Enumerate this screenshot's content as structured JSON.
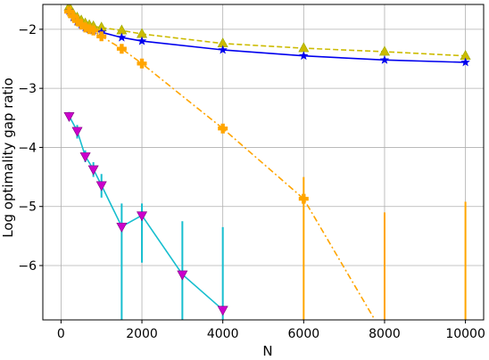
{
  "chart_data": {
    "type": "line",
    "title": "",
    "xlabel": "N",
    "ylabel": "Log optimality gap ratio",
    "xlim": [
      -450,
      10450
    ],
    "ylim": [
      -6.92,
      -1.58
    ],
    "grid": true,
    "x_ticks": [
      0,
      2000,
      4000,
      6000,
      8000,
      10000
    ],
    "x_tick_labels": [
      "0",
      "2000",
      "4000",
      "6000",
      "8000",
      "10000"
    ],
    "y_ticks": [
      -2,
      -3,
      -4,
      -5,
      -6
    ],
    "y_tick_labels": [
      "−2",
      "−3",
      "−4",
      "−5",
      "−6"
    ],
    "series": [
      {
        "color": "#ccbb00",
        "line_style": "dashed",
        "marker": "triangle-up",
        "x": [
          200,
          300,
          400,
          500,
          600,
          700,
          800,
          1000,
          1500,
          2000,
          4000,
          6000,
          8000,
          10000
        ],
        "y": [
          -1.62,
          -1.74,
          -1.8,
          -1.85,
          -1.9,
          -1.93,
          -1.95,
          -1.97,
          -2.02,
          -2.08,
          -2.24,
          -2.32,
          -2.38,
          -2.45
        ]
      },
      {
        "color": "#0000ee",
        "line_style": "solid",
        "marker": "star",
        "x": [
          200,
          300,
          400,
          500,
          600,
          700,
          800,
          1000,
          1500,
          2000,
          4000,
          6000,
          8000,
          10000
        ],
        "y": [
          -1.69,
          -1.8,
          -1.87,
          -1.92,
          -1.97,
          -2.0,
          -2.02,
          -2.05,
          -2.14,
          -2.2,
          -2.35,
          -2.45,
          -2.52,
          -2.56
        ]
      },
      {
        "color": "#ffa500",
        "line_style": "dashdot",
        "marker": "plus",
        "x": [
          200,
          300,
          400,
          500,
          600,
          700,
          800,
          1000,
          1500,
          2000,
          4000,
          6000,
          8000
        ],
        "y": [
          -1.7,
          -1.78,
          -1.86,
          -1.92,
          -1.97,
          -2.0,
          -2.02,
          -2.12,
          -2.33,
          -2.58,
          -3.68,
          -4.87,
          -7.2
        ],
        "error_bars": [
          {
            "x": 6000,
            "low": -7.6,
            "high": -4.5
          },
          {
            "x": 8000,
            "low": -7.6,
            "high": -5.1
          },
          {
            "x": 10000,
            "low": -7.6,
            "high": -4.92
          }
        ]
      },
      {
        "color": "#17becf",
        "line_style": "solid",
        "marker": "triangle-down",
        "marker_color": "#cc00cc",
        "x": [
          200,
          400,
          600,
          800,
          1000,
          1500,
          2000,
          3000,
          4000
        ],
        "y": [
          -3.47,
          -3.72,
          -4.15,
          -4.37,
          -4.64,
          -5.34,
          -5.15,
          -6.15,
          -6.75
        ],
        "error_bars": [
          {
            "x": 200,
            "low": -3.55,
            "high": -3.4
          },
          {
            "x": 400,
            "low": -3.85,
            "high": -3.62
          },
          {
            "x": 600,
            "low": -4.25,
            "high": -4.05
          },
          {
            "x": 800,
            "low": -4.5,
            "high": -4.25
          },
          {
            "x": 1000,
            "low": -4.85,
            "high": -4.45
          },
          {
            "x": 1500,
            "low": -7.3,
            "high": -4.95
          },
          {
            "x": 2000,
            "low": -5.95,
            "high": -4.95
          },
          {
            "x": 3000,
            "low": -7.3,
            "high": -5.25
          },
          {
            "x": 4000,
            "low": -7.3,
            "high": -5.35
          }
        ]
      }
    ]
  }
}
